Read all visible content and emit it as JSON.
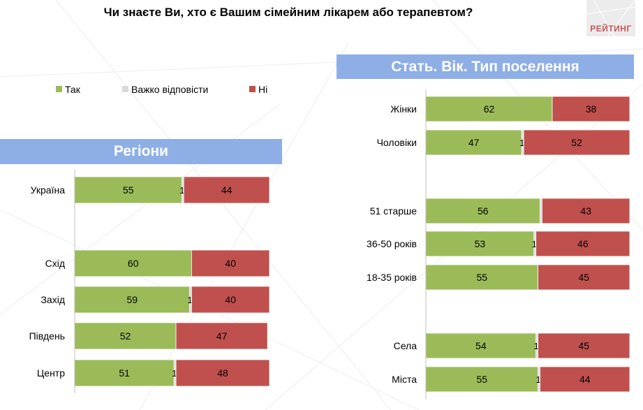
{
  "title": "Чи знаєте Ви, хто є Вашим сімейним лікарем або терапевтом?",
  "logo": {
    "text": "РЕЙТИНГ"
  },
  "legend": [
    {
      "label": "Так",
      "color": "#9bbb59"
    },
    {
      "label": "Важко відповісти",
      "color": "#d9d9d9"
    },
    {
      "label": "Ні",
      "color": "#c0504d"
    }
  ],
  "banners": {
    "regions": "Регіони",
    "demographics": "Стать. Вік. Тип поселення"
  },
  "chart_data": [
    {
      "type": "bar",
      "orientation": "horizontal",
      "stacked": true,
      "title": "Регіони",
      "categories": [
        "Україна",
        "Схід",
        "Захід",
        "Південь",
        "Центр"
      ],
      "series": [
        {
          "name": "Так",
          "values": [
            55,
            60,
            59,
            52,
            51
          ]
        },
        {
          "name": "Важко відповісти",
          "values": [
            1,
            0,
            1,
            0,
            1
          ]
        },
        {
          "name": "Ні",
          "values": [
            44,
            40,
            40,
            47,
            48
          ]
        }
      ],
      "shown_labels": {
        "Так": [
          "55",
          "60",
          "59",
          "52",
          "51"
        ],
        "Важко відповісти": [
          "1",
          "",
          "1",
          "",
          "1"
        ],
        "Ні": [
          "44",
          "40",
          "40",
          "47",
          "48"
        ]
      },
      "xlim": [
        0,
        100
      ],
      "grid": false,
      "legend": "top-left"
    },
    {
      "type": "bar",
      "orientation": "horizontal",
      "stacked": true,
      "title": "Стать. Вік. Тип поселення",
      "categories": [
        "Жінки",
        "Чоловіки",
        "51 старше",
        "36-50 років",
        "18-35 років",
        "Села",
        "Міста"
      ],
      "series": [
        {
          "name": "Так",
          "values": [
            62,
            47,
            56,
            53,
            55,
            54,
            55
          ]
        },
        {
          "name": "Важко відповісти",
          "values": [
            0,
            1,
            1,
            1,
            0,
            1,
            1
          ]
        },
        {
          "name": "Ні",
          "values": [
            38,
            52,
            43,
            46,
            45,
            45,
            44
          ]
        }
      ],
      "shown_labels": {
        "Так": [
          "62",
          "47",
          "56",
          "53",
          "55",
          "54",
          "55"
        ],
        "Важко відповісти": [
          "",
          "1",
          "",
          "1",
          "",
          "1",
          "1"
        ],
        "Ні": [
          "38",
          "52",
          "43",
          "46",
          "45",
          "45",
          "44"
        ]
      },
      "xlim": [
        0,
        100
      ],
      "grid": false
    }
  ]
}
